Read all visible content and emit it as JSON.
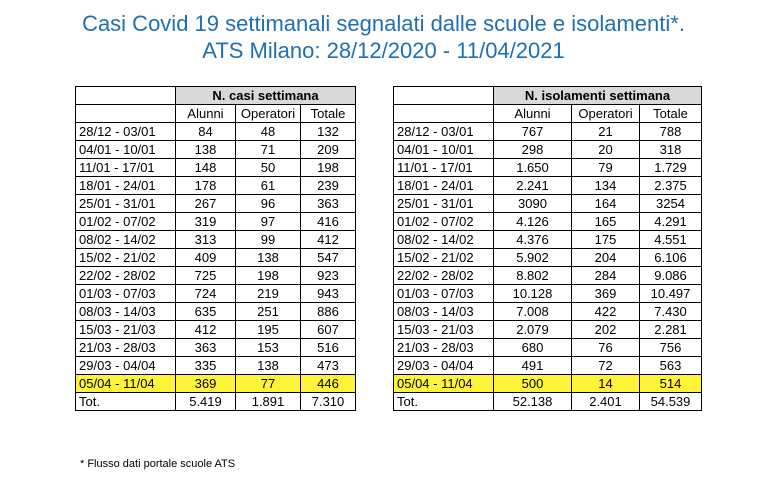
{
  "title_line1": "Casi Covid 19 settimanali segnalati dalle scuole e isolamenti*.",
  "title_line2": "ATS Milano: 28/12/2020 - 11/04/2021",
  "left_table": {
    "group_header": "N. casi settimana",
    "columns": [
      "Alunni",
      "Operatori",
      "Totale"
    ],
    "rows": [
      [
        "28/12 - 03/01",
        "84",
        "48",
        "132"
      ],
      [
        "04/01 - 10/01",
        "138",
        "71",
        "209"
      ],
      [
        "11/01 - 17/01",
        "148",
        "50",
        "198"
      ],
      [
        "18/01 - 24/01",
        "178",
        "61",
        "239"
      ],
      [
        "25/01 - 31/01",
        "267",
        "96",
        "363"
      ],
      [
        "01/02 - 07/02",
        "319",
        "97",
        "416"
      ],
      [
        "08/02 - 14/02",
        "313",
        "99",
        "412"
      ],
      [
        "15/02 - 21/02",
        "409",
        "138",
        "547"
      ],
      [
        "22/02 - 28/02",
        "725",
        "198",
        "923"
      ],
      [
        "01/03 - 07/03",
        "724",
        "219",
        "943"
      ],
      [
        "08/03 - 14/03",
        "635",
        "251",
        "886"
      ],
      [
        "15/03 - 21/03",
        "412",
        "195",
        "607"
      ],
      [
        "21/03 - 28/03",
        "363",
        "153",
        "516"
      ],
      [
        "29/03 - 04/04",
        "335",
        "138",
        "473"
      ],
      [
        "05/04 - 11/04",
        "369",
        "77",
        "446"
      ]
    ],
    "highlight_row": 14,
    "total_row": [
      "Tot.",
      "5.419",
      "1.891",
      "7.310"
    ]
  },
  "right_table": {
    "group_header": "N. isolamenti settimana",
    "columns": [
      "Alunni",
      "Operatori",
      "Totale"
    ],
    "rows": [
      [
        "28/12 - 03/01",
        "767",
        "21",
        "788"
      ],
      [
        "04/01 - 10/01",
        "298",
        "20",
        "318"
      ],
      [
        "11/01 - 17/01",
        "1.650",
        "79",
        "1.729"
      ],
      [
        "18/01 - 24/01",
        "2.241",
        "134",
        "2.375"
      ],
      [
        "25/01 - 31/01",
        "3090",
        "164",
        "3254"
      ],
      [
        "01/02 - 07/02",
        "4.126",
        "165",
        "4.291"
      ],
      [
        "08/02 - 14/02",
        "4.376",
        "175",
        "4.551"
      ],
      [
        "15/02 - 21/02",
        "5.902",
        "204",
        "6.106"
      ],
      [
        "22/02 - 28/02",
        "8.802",
        "284",
        "9.086"
      ],
      [
        "01/03 - 07/03",
        "10.128",
        "369",
        "10.497"
      ],
      [
        "08/03 - 14/03",
        "7.008",
        "422",
        "7.430"
      ],
      [
        "15/03 - 21/03",
        "2.079",
        "202",
        "2.281"
      ],
      [
        "21/03 - 28/03",
        "680",
        "76",
        "756"
      ],
      [
        "29/03 - 04/04",
        "491",
        "72",
        "563"
      ],
      [
        "05/04 - 11/04",
        "500",
        "14",
        "514"
      ]
    ],
    "highlight_row": 14,
    "total_row": [
      "Tot.",
      "52.138",
      "2.401",
      "54.539"
    ]
  },
  "colors": {
    "title": "#1f6fb2",
    "header_fill": "#d9d9d9",
    "highlight": "#fff33a"
  },
  "footnote": "* Flusso dati portale scuole ATS"
}
